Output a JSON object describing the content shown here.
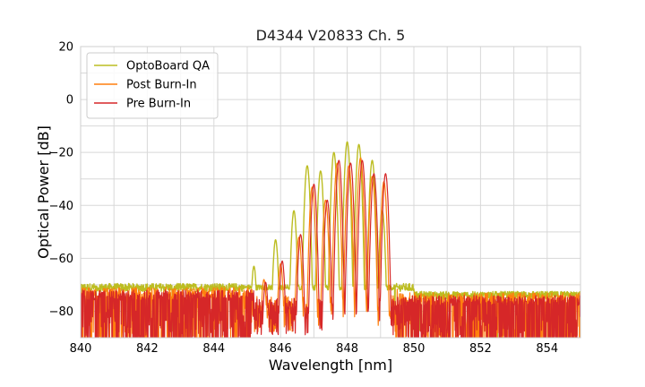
{
  "chart_data": {
    "type": "line",
    "title": "D4344 V20833 Ch. 5",
    "xlabel": "Wavelength [nm]",
    "ylabel": "Optical Power [dB]",
    "xlim": [
      840,
      855
    ],
    "ylim": [
      -90,
      20
    ],
    "xticks": [
      "840",
      "842",
      "844",
      "846",
      "848",
      "850",
      "852",
      "854"
    ],
    "yticks": [
      "20",
      "0",
      "−20",
      "−40",
      "−60",
      "−80"
    ],
    "grid": true,
    "legend_position": "top-left",
    "series": [
      {
        "name": "OptoBoard QA",
        "color": "#bcbd22",
        "noise_floor": -71,
        "peaks": [
          {
            "x": 845.2,
            "y": -63
          },
          {
            "x": 845.85,
            "y": -53
          },
          {
            "x": 846.4,
            "y": -42
          },
          {
            "x": 846.8,
            "y": -25
          },
          {
            "x": 847.2,
            "y": -27
          },
          {
            "x": 847.6,
            "y": -20
          },
          {
            "x": 848.0,
            "y": -16
          },
          {
            "x": 848.35,
            "y": -17
          },
          {
            "x": 848.75,
            "y": -23
          },
          {
            "x": 849.05,
            "y": -42
          }
        ],
        "points": [
          [
            840,
            -71
          ],
          [
            845.2,
            -63
          ],
          [
            845.85,
            -53
          ],
          [
            846.4,
            -42
          ],
          [
            846.8,
            -25
          ],
          [
            847.2,
            -27
          ],
          [
            847.6,
            -20
          ],
          [
            848.0,
            -16
          ],
          [
            848.35,
            -17
          ],
          [
            848.75,
            -23
          ],
          [
            849.05,
            -42
          ],
          [
            849.4,
            -70
          ],
          [
            850,
            -74
          ],
          [
            855,
            -74
          ]
        ]
      },
      {
        "name": "Post Burn-In",
        "color": "#ff7f0e",
        "noise_floor": -74,
        "peaks": [
          {
            "x": 845.5,
            "y": -68
          },
          {
            "x": 846.0,
            "y": -62
          },
          {
            "x": 846.55,
            "y": -52
          },
          {
            "x": 846.95,
            "y": -33
          },
          {
            "x": 847.35,
            "y": -38
          },
          {
            "x": 847.7,
            "y": -24
          },
          {
            "x": 848.05,
            "y": -25
          },
          {
            "x": 848.4,
            "y": -22
          },
          {
            "x": 848.75,
            "y": -29
          },
          {
            "x": 849.1,
            "y": -31
          }
        ],
        "points": [
          [
            840,
            -74
          ],
          [
            845.5,
            -68
          ],
          [
            846.0,
            -62
          ],
          [
            846.55,
            -52
          ],
          [
            846.95,
            -33
          ],
          [
            847.35,
            -38
          ],
          [
            847.7,
            -24
          ],
          [
            848.05,
            -25
          ],
          [
            848.4,
            -22
          ],
          [
            848.75,
            -29
          ],
          [
            849.1,
            -31
          ],
          [
            849.6,
            -74
          ],
          [
            855,
            -75
          ]
        ]
      },
      {
        "name": "Pre Burn-In",
        "color": "#d62728",
        "noise_floor": -75,
        "peaks": [
          {
            "x": 845.55,
            "y": -69
          },
          {
            "x": 846.05,
            "y": -61
          },
          {
            "x": 846.6,
            "y": -51
          },
          {
            "x": 847.0,
            "y": -32
          },
          {
            "x": 847.4,
            "y": -38
          },
          {
            "x": 847.75,
            "y": -23
          },
          {
            "x": 848.1,
            "y": -24
          },
          {
            "x": 848.45,
            "y": -23
          },
          {
            "x": 848.8,
            "y": -28
          },
          {
            "x": 849.15,
            "y": -28
          }
        ],
        "points": [
          [
            840,
            -75
          ],
          [
            845.55,
            -69
          ],
          [
            846.05,
            -61
          ],
          [
            846.6,
            -51
          ],
          [
            847.0,
            -32
          ],
          [
            847.4,
            -38
          ],
          [
            847.75,
            -23
          ],
          [
            848.1,
            -24
          ],
          [
            848.45,
            -23
          ],
          [
            848.8,
            -28
          ],
          [
            849.15,
            -28
          ],
          [
            849.6,
            -75
          ],
          [
            855,
            -76
          ]
        ]
      }
    ]
  }
}
